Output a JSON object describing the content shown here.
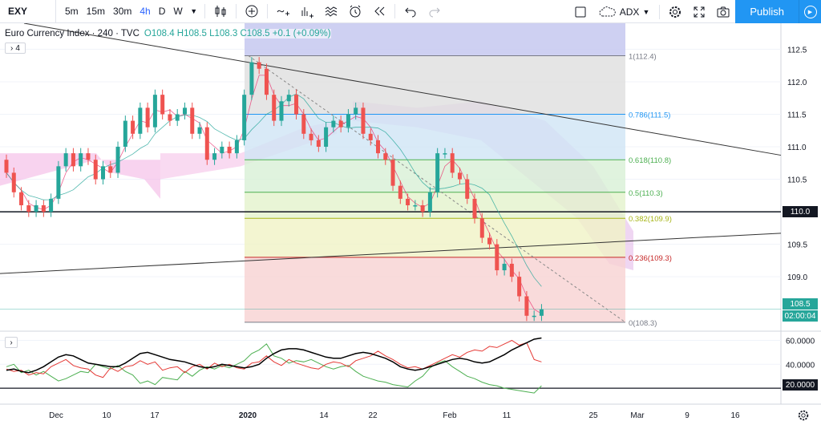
{
  "toolbar": {
    "symbol": "EXY",
    "intervals": [
      "5m",
      "15m",
      "30m",
      "4h",
      "D",
      "W"
    ],
    "active_interval": "4h",
    "indicator_label": "ADX",
    "publish_label": "Publish"
  },
  "legend": {
    "title": "Euro Currency Index · 240 · TVC",
    "ohlc": "O108.4 H108.5 L108.3 C108.5 +0.1 (+0.09%)",
    "collapse_count": "4"
  },
  "price_axis": {
    "ticks": [
      "112.5",
      "112.0",
      "111.5",
      "111.0",
      "110.5",
      "110.0",
      "109.5",
      "109.0"
    ],
    "tag_line": "110.0",
    "current_price": "108.5",
    "countdown": "02:00:04"
  },
  "indicator_axis": {
    "ticks": [
      "60.0000",
      "40.0000"
    ],
    "tag_line": "20.0000"
  },
  "time_axis": {
    "ticks": [
      "Dec",
      "10",
      "17",
      "2020",
      "14",
      "22",
      "Feb",
      "11",
      "25",
      "Mar",
      "9",
      "16"
    ]
  },
  "fib_levels": [
    {
      "label": "1(112.4)",
      "color": "#787b86"
    },
    {
      "label": "0.786(111.5)",
      "color": "#2196f3"
    },
    {
      "label": "0.618(110.8)",
      "color": "#4caf50"
    },
    {
      "label": "0.5(110.3)",
      "color": "#4caf50"
    },
    {
      "label": "0.382(109.9)",
      "color": "#a6b516"
    },
    {
      "label": "0.236(109.3)",
      "color": "#c62828"
    },
    {
      "label": "0(108.3)",
      "color": "#787b86"
    }
  ],
  "chart_data": {
    "type": "candlestick",
    "ylim": [
      108.2,
      112.9
    ],
    "candles": [
      [
        110.8,
        110.6
      ],
      [
        110.6,
        110.3
      ],
      [
        110.3,
        110.1
      ],
      [
        110.1,
        110.0
      ],
      [
        110.0,
        110.1
      ],
      [
        110.1,
        110.0
      ],
      [
        110.0,
        110.2
      ],
      [
        110.2,
        110.7
      ],
      [
        110.7,
        110.9
      ],
      [
        110.9,
        110.7
      ],
      [
        110.7,
        110.9
      ],
      [
        110.9,
        110.8
      ],
      [
        110.8,
        110.5
      ],
      [
        110.5,
        110.7
      ],
      [
        110.7,
        110.6
      ],
      [
        110.6,
        111.0
      ],
      [
        111.0,
        111.4
      ],
      [
        111.4,
        111.2
      ],
      [
        111.2,
        111.6
      ],
      [
        111.6,
        111.3
      ],
      [
        111.3,
        111.8
      ],
      [
        111.8,
        111.5
      ],
      [
        111.5,
        111.4
      ],
      [
        111.4,
        111.5
      ],
      [
        111.5,
        111.6
      ],
      [
        111.6,
        111.2
      ],
      [
        111.2,
        111.3
      ],
      [
        111.3,
        110.8
      ],
      [
        110.8,
        110.9
      ],
      [
        110.9,
        111.0
      ],
      [
        111.0,
        110.9
      ],
      [
        110.9,
        111.1
      ],
      [
        111.1,
        111.8
      ],
      [
        111.8,
        112.3
      ],
      [
        112.3,
        112.2
      ],
      [
        112.2,
        111.8
      ],
      [
        111.8,
        111.4
      ],
      [
        111.4,
        111.7
      ],
      [
        111.7,
        111.8
      ],
      [
        111.8,
        111.5
      ],
      [
        111.5,
        111.2
      ],
      [
        111.2,
        111.1
      ],
      [
        111.1,
        111.0
      ],
      [
        111.0,
        111.3
      ],
      [
        111.3,
        111.4
      ],
      [
        111.4,
        111.3
      ],
      [
        111.3,
        111.5
      ],
      [
        111.5,
        111.6
      ],
      [
        111.6,
        111.2
      ],
      [
        111.2,
        111.1
      ],
      [
        111.1,
        110.9
      ],
      [
        110.9,
        110.8
      ],
      [
        110.8,
        110.4
      ],
      [
        110.4,
        110.2
      ],
      [
        110.2,
        110.1
      ],
      [
        110.1,
        110.1
      ],
      [
        110.1,
        110.0
      ],
      [
        110.0,
        110.3
      ],
      [
        110.3,
        110.9
      ],
      [
        110.9,
        110.9
      ],
      [
        110.9,
        110.6
      ],
      [
        110.6,
        110.5
      ],
      [
        110.5,
        110.2
      ],
      [
        110.2,
        109.9
      ],
      [
        109.9,
        109.6
      ],
      [
        109.6,
        109.5
      ],
      [
        109.5,
        109.1
      ],
      [
        109.1,
        109.2
      ],
      [
        109.2,
        109.0
      ],
      [
        109.0,
        108.7
      ],
      [
        108.7,
        108.4
      ],
      [
        108.4,
        108.4
      ],
      [
        108.4,
        108.5
      ]
    ],
    "adx": [
      35,
      36,
      34,
      33,
      35,
      38,
      42,
      46,
      48,
      47,
      44,
      41,
      40,
      39,
      38,
      38,
      41,
      45,
      49,
      50,
      48,
      46,
      44,
      43,
      42,
      40,
      38,
      37,
      38,
      40,
      39,
      38,
      37,
      38,
      40,
      45,
      49,
      52,
      53,
      53,
      52,
      50,
      48,
      46,
      45,
      45,
      47,
      49,
      50,
      49,
      47,
      45,
      42,
      38,
      36,
      35,
      36,
      38,
      40,
      42,
      44,
      45,
      44,
      42,
      41,
      42,
      45,
      48,
      52,
      55,
      58,
      61,
      62
    ],
    "di_plus": [
      36,
      34,
      35,
      31,
      33,
      32,
      38,
      41,
      44,
      39,
      37,
      36,
      31,
      29,
      37,
      34,
      38,
      39,
      43,
      40,
      42,
      35,
      37,
      38,
      33,
      38,
      40,
      36,
      41,
      38,
      40,
      37,
      36,
      41,
      42,
      47,
      42,
      39,
      44,
      41,
      39,
      37,
      36,
      40,
      42,
      41,
      38,
      43,
      45,
      47,
      51,
      47,
      44,
      40,
      37,
      38,
      36,
      39,
      42,
      45,
      48,
      46,
      50,
      52,
      51,
      55,
      54,
      57,
      60,
      56,
      58,
      44,
      42
    ],
    "di_minus": [
      38,
      40,
      33,
      35,
      31,
      34,
      30,
      26,
      28,
      31,
      34,
      33,
      40,
      38,
      36,
      39,
      34,
      31,
      24,
      26,
      23,
      29,
      28,
      27,
      34,
      30,
      35,
      38,
      36,
      39,
      37,
      40,
      43,
      49,
      52,
      57,
      47,
      45,
      41,
      43,
      42,
      44,
      41,
      38,
      36,
      38,
      39,
      34,
      30,
      28,
      26,
      25,
      23,
      22,
      21,
      26,
      30,
      37,
      41,
      43,
      38,
      34,
      30,
      28,
      25,
      23,
      22,
      20,
      19,
      18,
      17,
      16,
      22
    ]
  }
}
